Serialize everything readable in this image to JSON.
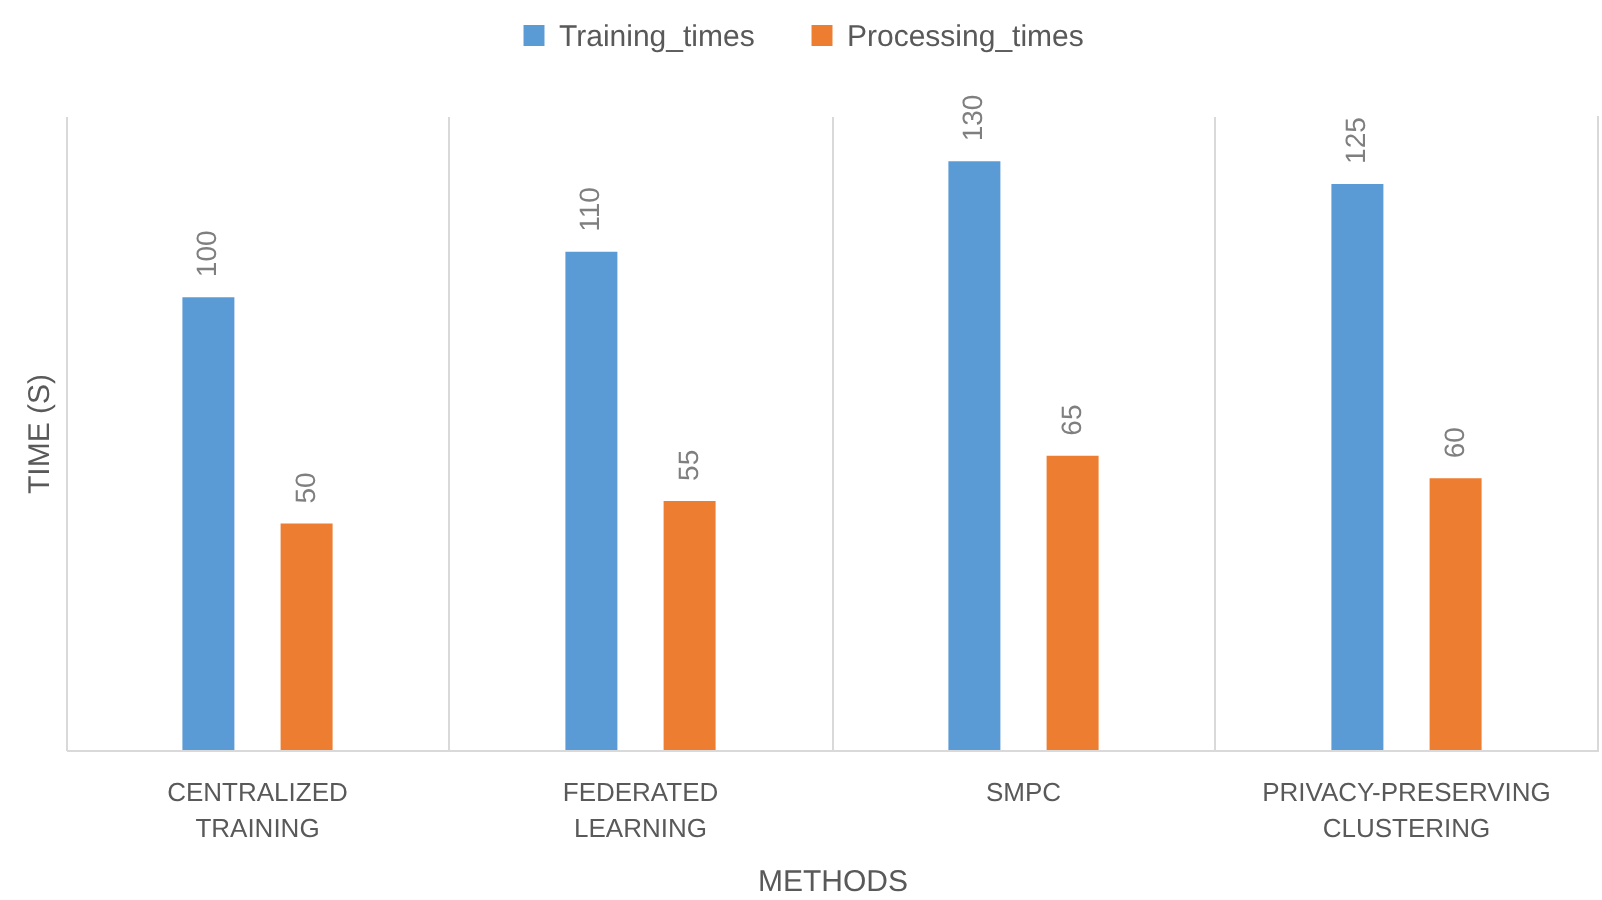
{
  "chart_data": {
    "type": "bar",
    "xlabel": "METHODS",
    "ylabel": "TIME (S)",
    "categories": [
      "CENTRALIZED TRAINING",
      "FEDERATED LEARNING",
      "SMPC",
      "PRIVACY-PRESERVING CLUSTERING"
    ],
    "series": [
      {
        "name": "Training_times",
        "color": "#5b9bd5",
        "values": [
          100,
          110,
          130,
          125
        ]
      },
      {
        "name": "Processing_times",
        "color": "#ed7d31",
        "values": [
          50,
          55,
          65,
          60
        ]
      }
    ],
    "ylim": [
      0,
      140
    ],
    "data_labels": true,
    "grid": "x",
    "legend": "top",
    "tick_labels": "x"
  }
}
